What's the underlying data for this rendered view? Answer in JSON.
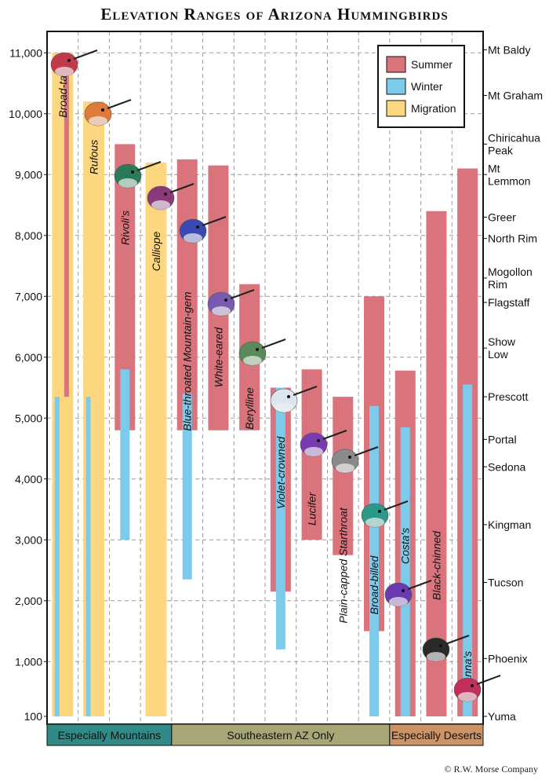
{
  "chart_data": {
    "type": "bar",
    "title": "Elevation Ranges of Arizona Hummingbirds",
    "ylim": [
      0,
      12000
    ],
    "yticks": [
      {
        "value": 100,
        "label": "100"
      },
      {
        "value": 1000,
        "label": "1,000"
      },
      {
        "value": 2000,
        "label": "2,000"
      },
      {
        "value": 3000,
        "label": "3,000"
      },
      {
        "value": 4000,
        "label": "4,000"
      },
      {
        "value": 5000,
        "label": "5,000"
      },
      {
        "value": 6000,
        "label": "6,000"
      },
      {
        "value": 7000,
        "label": "7,000"
      },
      {
        "value": 8000,
        "label": "8,000"
      },
      {
        "value": 9000,
        "label": "9,000"
      },
      {
        "value": 10000,
        "label": "10,000"
      },
      {
        "value": 11000,
        "label": "11,000"
      }
    ],
    "legend": {
      "placement": "top-right",
      "entries": [
        {
          "name": "Summer",
          "color": "#d9737c"
        },
        {
          "name": "Winter",
          "color": "#7ccbea"
        },
        {
          "name": "Migration",
          "color": "#fcd77f"
        }
      ]
    },
    "colors": {
      "summer": "#d9737c",
      "winter": "#7ccbea",
      "migration": "#fcd77f"
    },
    "species": [
      {
        "name": "Broad-tailed",
        "ranges": [
          {
            "kind": "migration",
            "from": 100,
            "to": 11000
          },
          {
            "kind": "winter",
            "from": 100,
            "to": 5350
          },
          {
            "kind": "summer",
            "from": 5350,
            "to": 11000
          }
        ]
      },
      {
        "name": "Rufous",
        "ranges": [
          {
            "kind": "migration",
            "from": 100,
            "to": 10200
          },
          {
            "kind": "winter",
            "from": 100,
            "to": 5350
          }
        ]
      },
      {
        "name": "Rivoli's",
        "ranges": [
          {
            "kind": "summer",
            "from": 4800,
            "to": 9500
          },
          {
            "kind": "winter",
            "from": 3000,
            "to": 5800
          }
        ]
      },
      {
        "name": "Calliope",
        "ranges": [
          {
            "kind": "migration",
            "from": 100,
            "to": 9200
          }
        ]
      },
      {
        "name": "Blue-throated Mountain-gem",
        "ranges": [
          {
            "kind": "summer",
            "from": 4800,
            "to": 9250
          },
          {
            "kind": "winter",
            "from": 2350,
            "to": 5400
          }
        ]
      },
      {
        "name": "White-eared",
        "ranges": [
          {
            "kind": "summer",
            "from": 4800,
            "to": 9150
          }
        ]
      },
      {
        "name": "Berylline",
        "ranges": [
          {
            "kind": "summer",
            "from": 4800,
            "to": 7200
          }
        ]
      },
      {
        "name": "Violet-crowned",
        "ranges": [
          {
            "kind": "summer",
            "from": 2150,
            "to": 5500
          },
          {
            "kind": "winter",
            "from": 1200,
            "to": 5500
          }
        ]
      },
      {
        "name": "Lucifer",
        "ranges": [
          {
            "kind": "summer",
            "from": 3000,
            "to": 5800
          }
        ]
      },
      {
        "name": "Plain-capped Starthroat",
        "ranges": [
          {
            "kind": "summer",
            "from": 2750,
            "to": 5350
          }
        ]
      },
      {
        "name": "Broad-billed",
        "ranges": [
          {
            "kind": "summer",
            "from": 1500,
            "to": 7000
          },
          {
            "kind": "winter",
            "from": 100,
            "to": 5200
          }
        ]
      },
      {
        "name": "Costa's",
        "ranges": [
          {
            "kind": "summer",
            "from": 100,
            "to": 5780
          },
          {
            "kind": "winter",
            "from": 100,
            "to": 4850
          }
        ]
      },
      {
        "name": "Black-chinned",
        "ranges": [
          {
            "kind": "summer",
            "from": 100,
            "to": 8400
          }
        ]
      },
      {
        "name": "Anna's",
        "ranges": [
          {
            "kind": "summer",
            "from": 100,
            "to": 9100
          },
          {
            "kind": "winter",
            "from": 100,
            "to": 5550
          }
        ]
      }
    ],
    "places": [
      {
        "name": "Mt Baldy",
        "elevation": 11050
      },
      {
        "name": "Mt Graham",
        "elevation": 10300
      },
      {
        "name": "Chiricahua Peak",
        "elevation": 9500
      },
      {
        "name": "Mt Lemmon",
        "elevation": 9000
      },
      {
        "name": "Greer",
        "elevation": 8300
      },
      {
        "name": "North Rim",
        "elevation": 7950
      },
      {
        "name": "Mogollon Rim",
        "elevation": 7300
      },
      {
        "name": "Flagstaff",
        "elevation": 6900
      },
      {
        "name": "Show Low",
        "elevation": 6150
      },
      {
        "name": "Prescott",
        "elevation": 5350
      },
      {
        "name": "Portal",
        "elevation": 4650
      },
      {
        "name": "Sedona",
        "elevation": 4200
      },
      {
        "name": "Kingman",
        "elevation": 3250
      },
      {
        "name": "Tucson",
        "elevation": 2300
      },
      {
        "name": "Phoenix",
        "elevation": 1050
      },
      {
        "name": "Yuma",
        "elevation": 100
      }
    ],
    "regions": [
      {
        "name": "Especially Mountains",
        "color": "#2f8a88",
        "from_species": 0,
        "to_species": 3
      },
      {
        "name": "Southeastern AZ Only",
        "color": "#a7a676",
        "from_species": 4,
        "to_species": 10
      },
      {
        "name": "Especially Deserts",
        "color": "#cd9365",
        "from_species": 11,
        "to_species": 13
      }
    ]
  },
  "copyright": "© R.W. Morse Company"
}
